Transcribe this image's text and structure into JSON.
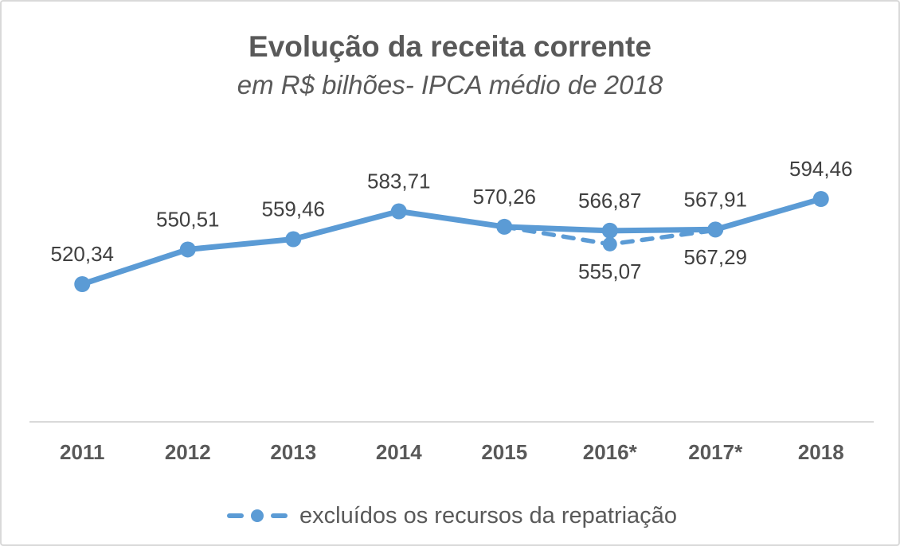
{
  "title": "Evolução da receita corrente",
  "subtitle": "em R$ bilhões- IPCA médio de 2018",
  "legend": {
    "label": "excluídos os recursos da repatriação"
  },
  "colors": {
    "line": "#5b9bd5",
    "axis": "#d9d9d9",
    "title": "#595959",
    "data_label": "#404040"
  },
  "chart_data": {
    "type": "line",
    "categories": [
      "2011",
      "2012",
      "2013",
      "2014",
      "2015",
      "2016*",
      "2017*",
      "2018"
    ],
    "series": [
      {
        "name": "receita corrente",
        "style": "solid",
        "values": [
          520.34,
          550.51,
          559.46,
          583.71,
          570.26,
          566.87,
          567.91,
          594.46
        ],
        "labels": [
          "520,34",
          "550,51",
          "559,46",
          "583,71",
          "570,26",
          "566,87",
          "567,91",
          "594,46"
        ],
        "label_positions": [
          "above",
          "above",
          "above",
          "above",
          "above",
          "above",
          "above",
          "above"
        ]
      },
      {
        "name": "excluídos os recursos da repatriação",
        "style": "dashed",
        "category_indexes": [
          4,
          5,
          6
        ],
        "values": [
          570.26,
          555.07,
          567.29
        ],
        "labels": [
          "",
          "555,07",
          "567,29"
        ],
        "label_positions": [
          "none",
          "below",
          "below"
        ]
      }
    ],
    "title": "Evolução da receita corrente",
    "subtitle": "em R$ bilhões- IPCA médio de 2018",
    "xlabel": "",
    "ylabel": "",
    "ylim": [
      505,
      615
    ],
    "grid": false,
    "x_axis_line": true,
    "legend_position": "bottom",
    "legend_entries": [
      "excluídos os recursos da repatriação"
    ]
  }
}
